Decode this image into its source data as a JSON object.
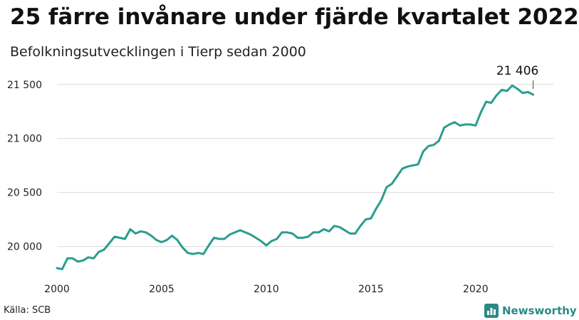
{
  "header": {
    "title": "25 färre invånare under fjärde kvartalet 2022",
    "subtitle": "Befolkningsutvecklingen i Tierp sedan 2000"
  },
  "footer": {
    "source": "Källa: SCB",
    "brand": "Newsworthy"
  },
  "icons": {
    "brand_logo": "bar-chart-icon"
  },
  "colors": {
    "line": "#2a9d8f",
    "grid": "#dcdcdc",
    "brand": "#2a8a85"
  },
  "chart_data": {
    "type": "line",
    "title": "25 färre invånare under fjärde kvartalet 2022",
    "subtitle": "Befolkningsutvecklingen i Tierp sedan 2000",
    "xlabel": "",
    "ylabel": "",
    "xlim": [
      2000,
      2023.75
    ],
    "ylim": [
      19780,
      21650
    ],
    "grid": true,
    "x_ticks": [
      2000,
      2005,
      2010,
      2015,
      2020
    ],
    "x_tick_labels": [
      "2000",
      "2005",
      "2010",
      "2015",
      "2020"
    ],
    "y_ticks": [
      20000,
      20500,
      21000,
      21500
    ],
    "y_tick_labels": [
      "20 000",
      "20 500",
      "21 000",
      "21 500"
    ],
    "annotation": {
      "label": "21 406",
      "x": 2022.75,
      "y": 21406
    },
    "series": [
      {
        "x_start": 2000,
        "x_step": 0.25,
        "values": [
          19800,
          19790,
          19890,
          19890,
          19860,
          19870,
          19900,
          19890,
          19950,
          19970,
          20030,
          20090,
          20080,
          20070,
          20160,
          20120,
          20140,
          20130,
          20100,
          20060,
          20040,
          20060,
          20100,
          20060,
          19990,
          19940,
          19930,
          19940,
          19930,
          20010,
          20080,
          20070,
          20070,
          20110,
          20130,
          20150,
          20130,
          20110,
          20080,
          20050,
          20010,
          20050,
          20070,
          20130,
          20130,
          20120,
          20080,
          20080,
          20090,
          20130,
          20130,
          20160,
          20140,
          20190,
          20180,
          20150,
          20120,
          20120,
          20190,
          20250,
          20260,
          20350,
          20430,
          20550,
          20580,
          20650,
          20720,
          20740,
          20750,
          20760,
          20880,
          20930,
          20940,
          20980,
          21100,
          21130,
          21150,
          21120,
          21130,
          21130,
          21120,
          21240,
          21340,
          21330,
          21400,
          21450,
          21440,
          21490,
          21460,
          21420,
          21430,
          21406
        ]
      }
    ]
  }
}
